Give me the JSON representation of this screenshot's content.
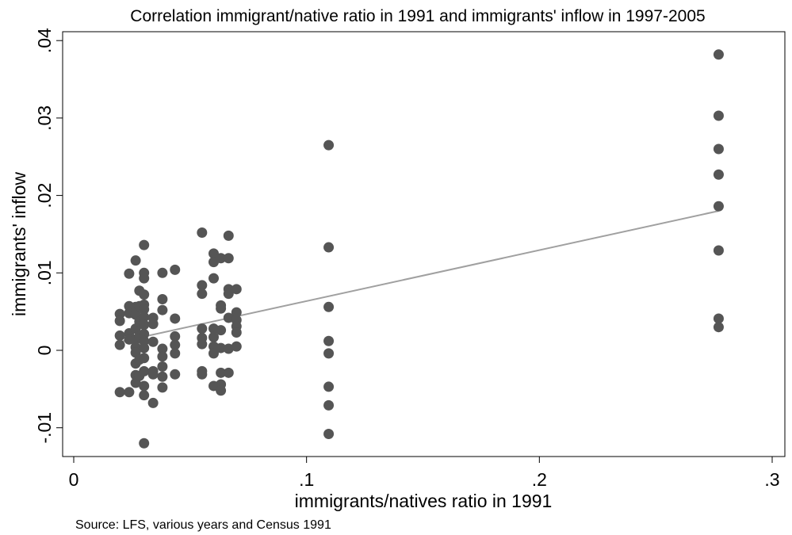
{
  "chart_data": {
    "type": "scatter",
    "title": "Correlation immigrant/native ratio in 1991 and immigrants' inflow in 1997-2005",
    "xlabel": "immigrants/natives ratio in 1991",
    "ylabel": "immigrants' inflow",
    "source": "Source: LFS, various years and Census 1991",
    "xlim": [
      0,
      0.3
    ],
    "ylim": [
      -0.013,
      0.041
    ],
    "x_ticks": [
      {
        "value": 0,
        "label": "0"
      },
      {
        "value": 0.1,
        "label": ".1"
      },
      {
        "value": 0.2,
        "label": ".2"
      },
      {
        "value": 0.3,
        "label": ".3"
      }
    ],
    "y_ticks": [
      {
        "value": -0.01,
        "label": "-.01"
      },
      {
        "value": 0,
        "label": "0"
      },
      {
        "value": 0.01,
        "label": ".01"
      },
      {
        "value": 0.02,
        "label": ".02"
      },
      {
        "value": 0.03,
        "label": ".03"
      },
      {
        "value": 0.04,
        "label": ".04"
      }
    ],
    "grid": false,
    "legend": "none",
    "colors": {
      "points": "#555555",
      "fit_line": "#a0a0a0",
      "axis": "#000000"
    },
    "fit_line": {
      "x": [
        0.02,
        0.277
      ],
      "y": [
        0.0011,
        0.018
      ]
    },
    "points": [
      {
        "x": 0.0198,
        "y": 0.0047
      },
      {
        "x": 0.0198,
        "y": 0.0038
      },
      {
        "x": 0.0198,
        "y": 0.0019
      },
      {
        "x": 0.0198,
        "y": 0.0007
      },
      {
        "x": 0.0198,
        "y": -0.0054
      },
      {
        "x": 0.0238,
        "y": 0.0099
      },
      {
        "x": 0.0238,
        "y": 0.0057
      },
      {
        "x": 0.0238,
        "y": 0.0048
      },
      {
        "x": 0.0238,
        "y": 0.0022
      },
      {
        "x": 0.0238,
        "y": 0.0014
      },
      {
        "x": 0.0238,
        "y": -0.0054
      },
      {
        "x": 0.0266,
        "y": 0.0116
      },
      {
        "x": 0.0266,
        "y": 0.0056
      },
      {
        "x": 0.0266,
        "y": 0.0046
      },
      {
        "x": 0.0266,
        "y": 0.0028
      },
      {
        "x": 0.0266,
        "y": 0.0014
      },
      {
        "x": 0.0266,
        "y": 0.0004
      },
      {
        "x": 0.0266,
        "y": -0.0003
      },
      {
        "x": 0.0266,
        "y": -0.0017
      },
      {
        "x": 0.0266,
        "y": -0.0032
      },
      {
        "x": 0.0266,
        "y": -0.0042
      },
      {
        "x": 0.0282,
        "y": 0.0077
      },
      {
        "x": 0.0282,
        "y": 0.0057
      },
      {
        "x": 0.0282,
        "y": 0.0037
      },
      {
        "x": 0.0282,
        "y": 0.0018
      },
      {
        "x": 0.0282,
        "y": -0.0012
      },
      {
        "x": 0.0282,
        "y": -0.0033
      },
      {
        "x": 0.0302,
        "y": 0.0136
      },
      {
        "x": 0.0302,
        "y": 0.01
      },
      {
        "x": 0.0302,
        "y": 0.0093
      },
      {
        "x": 0.0302,
        "y": 0.0072
      },
      {
        "x": 0.0302,
        "y": 0.0059
      },
      {
        "x": 0.0302,
        "y": 0.0053
      },
      {
        "x": 0.0302,
        "y": 0.0043
      },
      {
        "x": 0.0302,
        "y": 0.0033
      },
      {
        "x": 0.0302,
        "y": 0.0021
      },
      {
        "x": 0.0302,
        "y": 0.0012
      },
      {
        "x": 0.0302,
        "y": 0.0003
      },
      {
        "x": 0.0302,
        "y": -0.001
      },
      {
        "x": 0.0302,
        "y": -0.0027
      },
      {
        "x": 0.0302,
        "y": -0.0046
      },
      {
        "x": 0.0302,
        "y": -0.0058
      },
      {
        "x": 0.0302,
        "y": -0.012
      },
      {
        "x": 0.0341,
        "y": 0.0042
      },
      {
        "x": 0.0341,
        "y": 0.0034
      },
      {
        "x": 0.0341,
        "y": 0.0011
      },
      {
        "x": 0.0341,
        "y": -0.0027
      },
      {
        "x": 0.0341,
        "y": -0.0031
      },
      {
        "x": 0.0341,
        "y": -0.0068
      },
      {
        "x": 0.0381,
        "y": 0.01
      },
      {
        "x": 0.0381,
        "y": 0.0066
      },
      {
        "x": 0.0381,
        "y": 0.0052
      },
      {
        "x": 0.0381,
        "y": 0.0002
      },
      {
        "x": 0.0381,
        "y": -0.0008
      },
      {
        "x": 0.0381,
        "y": -0.0021
      },
      {
        "x": 0.0381,
        "y": -0.0034
      },
      {
        "x": 0.0381,
        "y": -0.0048
      },
      {
        "x": 0.0435,
        "y": 0.0104
      },
      {
        "x": 0.0435,
        "y": 0.0041
      },
      {
        "x": 0.0435,
        "y": 0.0018
      },
      {
        "x": 0.0435,
        "y": 0.0007
      },
      {
        "x": 0.0435,
        "y": -0.0004
      },
      {
        "x": 0.0435,
        "y": -0.0031
      },
      {
        "x": 0.0551,
        "y": 0.0152
      },
      {
        "x": 0.0551,
        "y": 0.0084
      },
      {
        "x": 0.0551,
        "y": 0.0073
      },
      {
        "x": 0.0551,
        "y": 0.0028
      },
      {
        "x": 0.0551,
        "y": 0.0016
      },
      {
        "x": 0.0551,
        "y": 0.0008
      },
      {
        "x": 0.0551,
        "y": -0.0027
      },
      {
        "x": 0.0551,
        "y": -0.0031
      },
      {
        "x": 0.0601,
        "y": 0.0125
      },
      {
        "x": 0.0601,
        "y": 0.0114
      },
      {
        "x": 0.0601,
        "y": 0.0093
      },
      {
        "x": 0.0601,
        "y": 0.0028
      },
      {
        "x": 0.0601,
        "y": 0.0017
      },
      {
        "x": 0.0601,
        "y": 0.0005
      },
      {
        "x": 0.0601,
        "y": -0.0004
      },
      {
        "x": 0.0601,
        "y": -0.0046
      },
      {
        "x": 0.0632,
        "y": 0.0119
      },
      {
        "x": 0.0632,
        "y": 0.0058
      },
      {
        "x": 0.0632,
        "y": 0.0054
      },
      {
        "x": 0.0632,
        "y": 0.0026
      },
      {
        "x": 0.0632,
        "y": 0.0003
      },
      {
        "x": 0.0632,
        "y": -0.0029
      },
      {
        "x": 0.0632,
        "y": -0.0044
      },
      {
        "x": 0.0632,
        "y": -0.0052
      },
      {
        "x": 0.0665,
        "y": 0.0148
      },
      {
        "x": 0.0665,
        "y": 0.0119
      },
      {
        "x": 0.0665,
        "y": 0.0079
      },
      {
        "x": 0.0665,
        "y": 0.0073
      },
      {
        "x": 0.0665,
        "y": 0.0042
      },
      {
        "x": 0.0665,
        "y": 0.0002
      },
      {
        "x": 0.0665,
        "y": -0.0029
      },
      {
        "x": 0.0699,
        "y": 0.0079
      },
      {
        "x": 0.0699,
        "y": 0.0049
      },
      {
        "x": 0.0699,
        "y": 0.0039
      },
      {
        "x": 0.0699,
        "y": 0.0031
      },
      {
        "x": 0.0699,
        "y": 0.0023
      },
      {
        "x": 0.0699,
        "y": 0.0005
      },
      {
        "x": 0.1095,
        "y": 0.0265
      },
      {
        "x": 0.1095,
        "y": 0.0133
      },
      {
        "x": 0.1095,
        "y": 0.0056
      },
      {
        "x": 0.1095,
        "y": 0.0012
      },
      {
        "x": 0.1095,
        "y": -0.0004
      },
      {
        "x": 0.1095,
        "y": -0.0047
      },
      {
        "x": 0.1095,
        "y": -0.0071
      },
      {
        "x": 0.1095,
        "y": -0.0108
      },
      {
        "x": 0.277,
        "y": 0.0382
      },
      {
        "x": 0.277,
        "y": 0.0303
      },
      {
        "x": 0.277,
        "y": 0.026
      },
      {
        "x": 0.277,
        "y": 0.0227
      },
      {
        "x": 0.277,
        "y": 0.0186
      },
      {
        "x": 0.277,
        "y": 0.0129
      },
      {
        "x": 0.277,
        "y": 0.0041
      },
      {
        "x": 0.277,
        "y": 0.003
      }
    ]
  }
}
